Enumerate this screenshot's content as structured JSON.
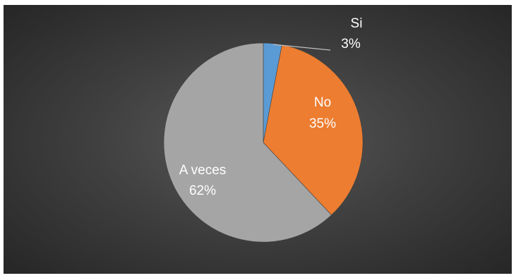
{
  "chart_data": {
    "type": "pie",
    "title": "",
    "slices": [
      {
        "label": "Si",
        "value": 3,
        "display": "3%",
        "color": "#5b9bd5"
      },
      {
        "label": "No",
        "value": 35,
        "display": "35%",
        "color": "#ed7d31"
      },
      {
        "label": "A veces",
        "value": 62,
        "display": "62%",
        "color": "#a5a5a5"
      }
    ],
    "legend": "none",
    "background": "#404040"
  }
}
